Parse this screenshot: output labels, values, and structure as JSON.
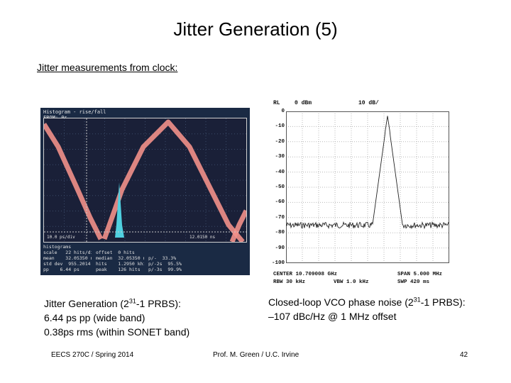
{
  "title": "Jitter Generation (5)",
  "subtitle": "Jitter measurements from clock:",
  "scope": {
    "header_line1": "Histogram - rise/fall",
    "header_line2": "FROM: 0s",
    "marker_left": "10.0 ps/div",
    "marker_right": "12.0150 ns",
    "footer_rows": [
      [
        "histograms",
        "",
        "",
        ""
      ],
      [
        "scale   22 hits/div",
        "offset  0 hits",
        "",
        ""
      ],
      [
        "mean    32.05350 ns",
        "median  32.05350 ns",
        "p/-  33.3%",
        ""
      ],
      [
        "std dev  955.2014 fs",
        "hits    1.2950 khits",
        "p/-2s  95.5%",
        ""
      ],
      [
        "pp    6.44 ps",
        "peak    126 hits",
        "p/-3s  99.9%",
        ""
      ]
    ]
  },
  "spectrum": {
    "rl_label": "RL",
    "rl_value": "0 dBm",
    "scale": "10 dB/",
    "y_ticks": [
      "0",
      "-10",
      "-20",
      "-30",
      "-40",
      "-50",
      "-60",
      "-70",
      "-80",
      "-90",
      "-100"
    ],
    "center": "CENTER  10.709008 GHz",
    "span": "SPAN  5.000 MHz",
    "rbw": "RBW   30 kHz",
    "vbw": "VBW   1.0 kHz",
    "swp": "SWP   420 ms"
  },
  "caption_left": {
    "line1_pre": "Jitter Generation (2",
    "line1_sup": "31",
    "line1_post": "-1 PRBS):",
    "line2": "6.44 ps pp (wide band)",
    "line3": "0.38ps rms (within SONET band)"
  },
  "caption_right": {
    "line1_pre": "Closed-loop VCO phase noise (2",
    "line1_sup": "31",
    "line1_post": "-1 PRBS):",
    "line2": "–107 dBc/Hz @ 1 MHz offset"
  },
  "footer": {
    "course": "EECS 270C / Spring 2014",
    "author": "Prof. M. Green / U.C. Irvine",
    "page": "42"
  }
}
